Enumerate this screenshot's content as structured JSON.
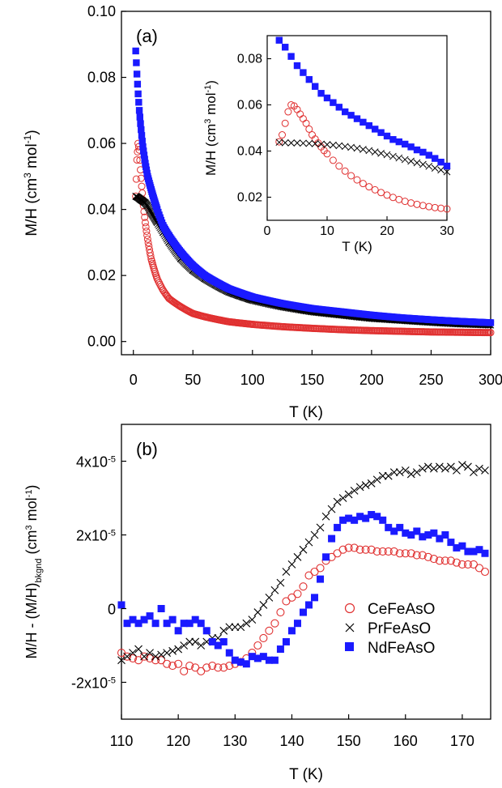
{
  "colors": {
    "ce": "#e03030",
    "pr": "#000000",
    "nd": "#1a1aff",
    "axis": "#000000"
  },
  "chart_data": [
    {
      "type": "scatter",
      "panel_label": "(a)",
      "xlabel": "T (K)",
      "ylabel": "M/H (cm³ mol⁻¹)",
      "xlim": [
        -10,
        300
      ],
      "ylim": [
        -0.004,
        0.1
      ],
      "xticks": [
        "0",
        "50",
        "100",
        "150",
        "200",
        "250",
        "300"
      ],
      "yticks": [
        "0.00",
        "0.02",
        "0.04",
        "0.06",
        "0.08",
        "0.10"
      ],
      "series": [
        {
          "key": "ce",
          "marker": "open-circle",
          "x": [
            2,
            3,
            4,
            5,
            6,
            7,
            8,
            10,
            12,
            15,
            20,
            25,
            30,
            40,
            50,
            60,
            80,
            100,
            125,
            150,
            175,
            200,
            225,
            250,
            275,
            300
          ],
          "y": [
            0.044,
            0.055,
            0.06,
            0.058,
            0.052,
            0.047,
            0.043,
            0.036,
            0.031,
            0.025,
            0.019,
            0.0155,
            0.013,
            0.0105,
            0.0085,
            0.0075,
            0.006,
            0.0052,
            0.0045,
            0.004,
            0.0036,
            0.0033,
            0.0031,
            0.0029,
            0.0028,
            0.0027
          ]
        },
        {
          "key": "pr",
          "marker": "cross",
          "x": [
            2,
            4,
            6,
            8,
            10,
            12,
            15,
            20,
            25,
            30,
            40,
            50,
            60,
            80,
            100,
            125,
            150,
            175,
            200,
            225,
            250,
            275,
            300
          ],
          "y": [
            0.044,
            0.0436,
            0.043,
            0.0425,
            0.042,
            0.041,
            0.039,
            0.036,
            0.033,
            0.03,
            0.025,
            0.0215,
            0.019,
            0.015,
            0.0125,
            0.0105,
            0.009,
            0.008,
            0.007,
            0.0064,
            0.0058,
            0.0053,
            0.005
          ]
        },
        {
          "key": "nd",
          "marker": "filled-square",
          "x": [
            2,
            3,
            4,
            5,
            6,
            8,
            10,
            12,
            15,
            20,
            25,
            30,
            40,
            50,
            60,
            80,
            100,
            125,
            150,
            175,
            200,
            225,
            250,
            275,
            300
          ],
          "y": [
            0.088,
            0.081,
            0.075,
            0.07,
            0.066,
            0.059,
            0.054,
            0.05,
            0.046,
            0.04,
            0.035,
            0.032,
            0.027,
            0.023,
            0.02,
            0.016,
            0.0135,
            0.0115,
            0.01,
            0.009,
            0.008,
            0.0072,
            0.0066,
            0.0061,
            0.0057
          ]
        }
      ],
      "inset": {
        "xlabel": "T (K)",
        "ylabel": "M/H (cm³ mol⁻¹)",
        "xlim": [
          0,
          30
        ],
        "ylim": [
          0.01,
          0.09
        ],
        "xticks": [
          "0",
          "10",
          "20",
          "30"
        ],
        "yticks": [
          "0.02",
          "0.04",
          "0.06",
          "0.08"
        ],
        "series": [
          {
            "key": "ce",
            "x": [
              2,
              2.5,
              3,
              3.5,
              4,
              4.5,
              5,
              5.5,
              6,
              6.5,
              7,
              7.5,
              8,
              8.5,
              9,
              9.5,
              10,
              11,
              12,
              13,
              14,
              15,
              16,
              17,
              18,
              19,
              20,
              21,
              22,
              23,
              24,
              25,
              26,
              27,
              28,
              29,
              30
            ],
            "y": [
              0.044,
              0.047,
              0.052,
              0.057,
              0.06,
              0.0595,
              0.058,
              0.056,
              0.054,
              0.052,
              0.0495,
              0.047,
              0.0452,
              0.0435,
              0.0418,
              0.0402,
              0.0388,
              0.036,
              0.0335,
              0.0313,
              0.0293,
              0.0275,
              0.0259,
              0.0245,
              0.0232,
              0.022,
              0.0209,
              0.0199,
              0.019,
              0.0182,
              0.0175,
              0.0169,
              0.0164,
              0.0159,
              0.0155,
              0.0152,
              0.0149
            ]
          },
          {
            "key": "pr",
            "x": [
              2,
              3,
              4,
              5,
              6,
              7,
              8,
              9,
              10,
              11,
              12,
              13,
              14,
              15,
              16,
              17,
              18,
              19,
              20,
              21,
              22,
              23,
              24,
              25,
              26,
              27,
              28,
              29,
              30
            ],
            "y": [
              0.0438,
              0.0436,
              0.0435,
              0.0435,
              0.0434,
              0.0433,
              0.0432,
              0.043,
              0.0428,
              0.0426,
              0.0423,
              0.042,
              0.0416,
              0.0412,
              0.0407,
              0.0402,
              0.0396,
              0.039,
              0.0384,
              0.0377,
              0.037,
              0.0363,
              0.0356,
              0.0349,
              0.0342,
              0.0334,
              0.0326,
              0.0318,
              0.031
            ]
          },
          {
            "key": "nd",
            "x": [
              2,
              3,
              4,
              5,
              6,
              7,
              8,
              9,
              10,
              11,
              12,
              13,
              14,
              15,
              16,
              17,
              18,
              19,
              20,
              21,
              22,
              23,
              24,
              25,
              26,
              27,
              28,
              29,
              30
            ],
            "y": [
              0.088,
              0.085,
              0.081,
              0.077,
              0.074,
              0.071,
              0.068,
              0.065,
              0.063,
              0.061,
              0.059,
              0.057,
              0.0555,
              0.054,
              0.0525,
              0.051,
              0.0495,
              0.048,
              0.0465,
              0.045,
              0.044,
              0.043,
              0.0418,
              0.0405,
              0.0395,
              0.0382,
              0.0368,
              0.0352,
              0.0335
            ]
          }
        ]
      }
    },
    {
      "type": "scatter",
      "panel_label": "(b)",
      "xlabel": "T (K)",
      "ylabel": "M/H - (M/H)bkgnd (cm³ mol⁻¹)",
      "xlim": [
        110,
        175
      ],
      "ylim": [
        -3e-05,
        5e-05
      ],
      "xticks": [
        "110",
        "120",
        "130",
        "140",
        "150",
        "160",
        "170"
      ],
      "yticks": [
        "-2x10-5",
        "0",
        "2x10-5",
        "4x10-5"
      ],
      "legend": {
        "placement": "lower-right",
        "entries": [
          "CeFeAsO",
          "PrFeAsO",
          "NdFeAsO"
        ]
      },
      "series": [
        {
          "key": "ce",
          "name": "CeFeAsO",
          "x": [
            110,
            111,
            112,
            113,
            114,
            115,
            116,
            117,
            118,
            119,
            120,
            121,
            122,
            123,
            124,
            125,
            126,
            127,
            128,
            129,
            130,
            131,
            132,
            133,
            134,
            135,
            136,
            137,
            138,
            139,
            140,
            141,
            142,
            143,
            144,
            145,
            146,
            147,
            148,
            149,
            150,
            151,
            152,
            153,
            154,
            155,
            156,
            157,
            158,
            159,
            160,
            161,
            162,
            163,
            164,
            165,
            166,
            167,
            168,
            169,
            170,
            171,
            172,
            173,
            174
          ],
          "y": [
            -1.2e-05,
            -1.3e-05,
            -1.35e-05,
            -1.4e-05,
            -1.3e-05,
            -1.35e-05,
            -1.4e-05,
            -1.4e-05,
            -1.5e-05,
            -1.55e-05,
            -1.5e-05,
            -1.7e-05,
            -1.55e-05,
            -1.6e-05,
            -1.7e-05,
            -1.6e-05,
            -1.55e-05,
            -1.6e-05,
            -1.6e-05,
            -1.55e-05,
            -1.5e-05,
            -1.45e-05,
            -1.35e-05,
            -1.2e-05,
            -1e-05,
            -8e-06,
            -6e-06,
            -4e-06,
            -1e-06,
            2e-06,
            3e-06,
            4e-06,
            6e-06,
            9e-06,
            1e-05,
            1.1e-05,
            1.3e-05,
            1.4e-05,
            1.5e-05,
            1.6e-05,
            1.65e-05,
            1.65e-05,
            1.6e-05,
            1.6e-05,
            1.6e-05,
            1.55e-05,
            1.55e-05,
            1.55e-05,
            1.55e-05,
            1.5e-05,
            1.5e-05,
            1.5e-05,
            1.45e-05,
            1.45e-05,
            1.4e-05,
            1.35e-05,
            1.3e-05,
            1.3e-05,
            1.3e-05,
            1.25e-05,
            1.2e-05,
            1.2e-05,
            1.2e-05,
            1.1e-05,
            1e-05
          ]
        },
        {
          "key": "pr",
          "name": "PrFeAsO",
          "x": [
            110,
            111,
            112,
            113,
            114,
            115,
            116,
            117,
            118,
            119,
            120,
            121,
            122,
            123,
            124,
            125,
            126,
            127,
            128,
            129,
            130,
            131,
            132,
            133,
            134,
            135,
            136,
            137,
            138,
            139,
            140,
            141,
            142,
            143,
            144,
            145,
            146,
            147,
            148,
            149,
            150,
            151,
            152,
            153,
            154,
            155,
            156,
            157,
            158,
            159,
            160,
            161,
            162,
            163,
            164,
            165,
            166,
            167,
            168,
            169,
            170,
            171,
            172,
            173,
            174
          ],
          "y": [
            -1.4e-05,
            -1.3e-05,
            -1.2e-05,
            -1.1e-05,
            -1.3e-05,
            -1.2e-05,
            -1.3e-05,
            -1.25e-05,
            -1.2e-05,
            -1.15e-05,
            -1.1e-05,
            -1e-05,
            -9e-06,
            -9e-06,
            -1e-05,
            -9e-06,
            -8e-06,
            -8e-06,
            -6e-06,
            -5e-06,
            -5e-06,
            -5e-06,
            -4e-06,
            -3e-06,
            -1e-06,
            1e-06,
            3e-06,
            5e-06,
            7e-06,
            1e-05,
            1.2e-05,
            1.4e-05,
            1.6e-05,
            1.8e-05,
            2e-05,
            2.2e-05,
            2.5e-05,
            2.7e-05,
            2.9e-05,
            3e-05,
            3.1e-05,
            3.2e-05,
            3.3e-05,
            3.35e-05,
            3.4e-05,
            3.5e-05,
            3.6e-05,
            3.6e-05,
            3.7e-05,
            3.7e-05,
            3.75e-05,
            3.65e-05,
            3.7e-05,
            3.8e-05,
            3.85e-05,
            3.8e-05,
            3.85e-05,
            3.8e-05,
            3.85e-05,
            3.75e-05,
            3.9e-05,
            3.85e-05,
            3.7e-05,
            3.8e-05,
            3.75e-05
          ]
        },
        {
          "key": "nd",
          "name": "NdFeAsO",
          "x": [
            110,
            111,
            112,
            113,
            114,
            115,
            116,
            117,
            118,
            119,
            120,
            121,
            122,
            123,
            124,
            125,
            126,
            127,
            128,
            129,
            130,
            131,
            132,
            133,
            134,
            135,
            136,
            137,
            138,
            139,
            140,
            141,
            142,
            143,
            144,
            145,
            146,
            147,
            148,
            149,
            150,
            151,
            152,
            153,
            154,
            155,
            156,
            157,
            158,
            159,
            160,
            161,
            162,
            163,
            164,
            165,
            166,
            167,
            168,
            169,
            170,
            171,
            172,
            173,
            174
          ],
          "y": [
            1e-06,
            -4e-06,
            -3e-06,
            -4e-06,
            -3e-06,
            -2e-06,
            -4e-06,
            0,
            -4e-06,
            -3e-06,
            -6e-06,
            -4e-06,
            -4e-06,
            -3e-06,
            -4e-06,
            -6e-06,
            -9e-06,
            -1e-05,
            -9e-06,
            -1.2e-05,
            -1.4e-05,
            -1.45e-05,
            -1.5e-05,
            -1.3e-05,
            -1.35e-05,
            -1.3e-05,
            -1.4e-05,
            -1.4e-05,
            -1.1e-05,
            -9e-06,
            -6e-06,
            -4e-06,
            -1e-06,
            1e-06,
            3e-06,
            8e-06,
            1.4e-05,
            1.9e-05,
            2.2e-05,
            2.4e-05,
            2.45e-05,
            2.4e-05,
            2.5e-05,
            2.45e-05,
            2.55e-05,
            2.5e-05,
            2.4e-05,
            2.2e-05,
            2.1e-05,
            2.2e-05,
            2.05e-05,
            2e-05,
            2.1e-05,
            1.95e-05,
            2e-05,
            2.05e-05,
            1.9e-05,
            2e-05,
            1.8e-05,
            1.65e-05,
            1.7e-05,
            1.55e-05,
            1.55e-05,
            1.6e-05,
            1.5e-05
          ]
        }
      ]
    }
  ]
}
